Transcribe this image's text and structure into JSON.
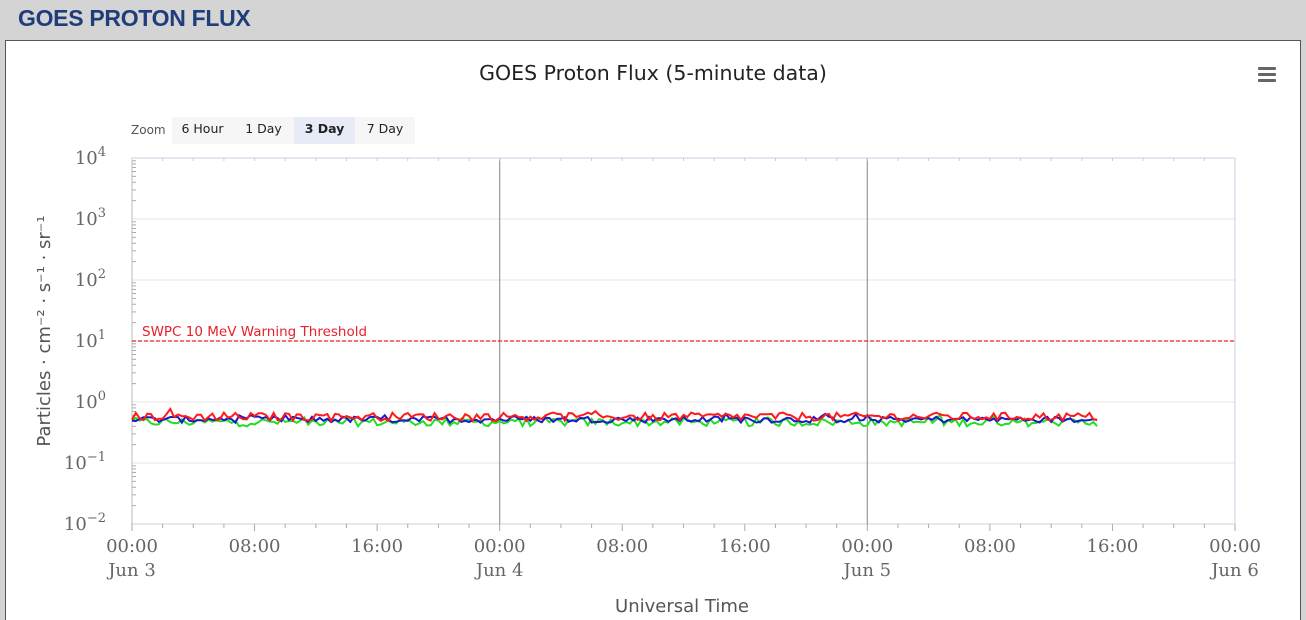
{
  "header": {
    "title": "GOES PROTON FLUX"
  },
  "menu_icon": "hamburger-menu-icon",
  "zoom": {
    "label": "Zoom",
    "buttons": [
      {
        "label": "6 Hour",
        "active": false
      },
      {
        "label": "1 Day",
        "active": false
      },
      {
        "label": "3 Day",
        "active": true
      },
      {
        "label": "7 Day",
        "active": false
      }
    ]
  },
  "chart_data": {
    "type": "line",
    "title": "GOES Proton Flux (5-minute data)",
    "xlabel": "Universal Time",
    "ylabel": "Particles · cm⁻² · s⁻¹ · sr⁻¹",
    "yscale": "log",
    "ylim": [
      0.01,
      10000
    ],
    "y_ticks": [
      {
        "base": "10",
        "exp": "4"
      },
      {
        "base": "10",
        "exp": "3"
      },
      {
        "base": "10",
        "exp": "2"
      },
      {
        "base": "10",
        "exp": "1"
      },
      {
        "base": "10",
        "exp": "0"
      },
      {
        "base": "10",
        "exp": "−1"
      },
      {
        "base": "10",
        "exp": "−2"
      }
    ],
    "x_range": [
      "Jun 3 00:00",
      "Jun 6 00:00"
    ],
    "x_ticks": [
      {
        "time": "00:00",
        "date": "Jun 3"
      },
      {
        "time": "08:00",
        "date": ""
      },
      {
        "time": "16:00",
        "date": ""
      },
      {
        "time": "00:00",
        "date": "Jun 4"
      },
      {
        "time": "08:00",
        "date": ""
      },
      {
        "time": "16:00",
        "date": ""
      },
      {
        "time": "00:00",
        "date": "Jun 5"
      },
      {
        "time": "08:00",
        "date": ""
      },
      {
        "time": "16:00",
        "date": ""
      },
      {
        "time": "00:00",
        "date": "Jun 6"
      }
    ],
    "day_boundaries": [
      "Jun 4 00:00",
      "Jun 5 00:00"
    ],
    "threshold": {
      "label": "SWPC 10 MeV Warning Threshold",
      "value": 10,
      "color": "#e8202a"
    },
    "data_end": "Jun 5 15:00",
    "series": [
      {
        "color": "#ff1a1a",
        "mean": 0.58,
        "noise": 0.05
      },
      {
        "color": "#1a1acc",
        "mean": 0.52,
        "noise": 0.035
      },
      {
        "color": "#22dd22",
        "mean": 0.47,
        "noise": 0.04
      }
    ],
    "grid": true
  }
}
